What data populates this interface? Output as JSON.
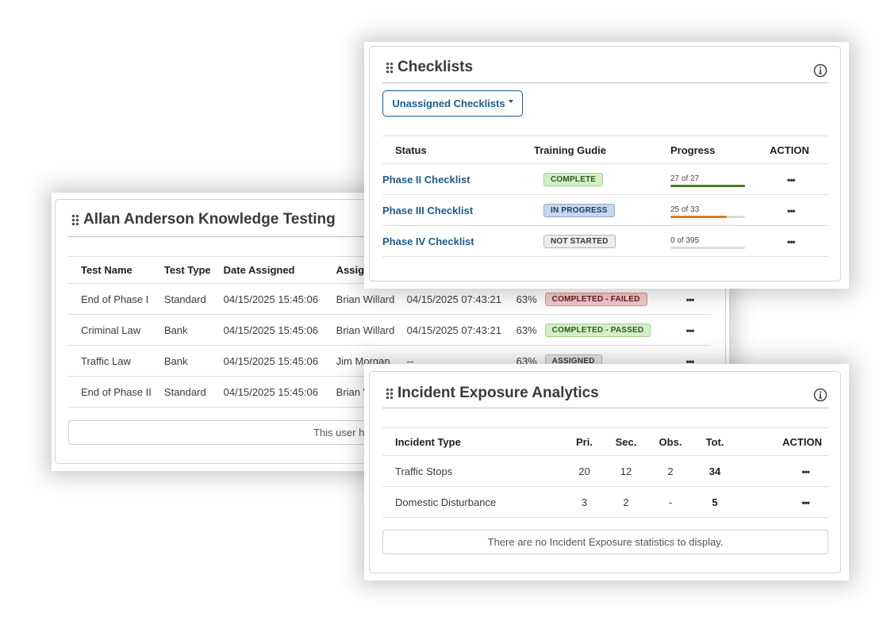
{
  "knowledge_testing": {
    "title": "Allan Anderson Knowledge Testing",
    "columns": [
      "Test Name",
      "Test Type",
      "Date Assigned",
      "Assigne",
      "",
      "",
      "",
      ""
    ],
    "rows": [
      {
        "name": "End of Phase I",
        "type": "Standard",
        "date_assigned": "04/15/2025 15:45:06",
        "assigned_by": "Brian Willard",
        "date_completed": "04/15/2025 07:43:21",
        "score": "63%",
        "status": "COMPLETED - FAILED",
        "action": "•••"
      },
      {
        "name": "Criminal Law",
        "type": "Bank",
        "date_assigned": "04/15/2025 15:45:06",
        "assigned_by": "Brian Willard",
        "date_completed": "04/15/2025 07:43:21",
        "score": "63%",
        "status": "COMPLETED - PASSED",
        "action": "•••"
      },
      {
        "name": "Traffic Law",
        "type": "Bank",
        "date_assigned": "04/15/2025 15:45:06",
        "assigned_by": "Jim Morgan",
        "date_completed": "--",
        "score": "63%",
        "status": "ASSIGNED",
        "action": "•••"
      },
      {
        "name": "End of Phase II",
        "type": "Standard",
        "date_assigned": "04/15/2025 15:45:06",
        "assigned_by": "Brian W",
        "date_completed": "",
        "score": "",
        "status": "",
        "action": ""
      }
    ],
    "empty_message": "This user h"
  },
  "checklists": {
    "title": "Checklists",
    "dropdown_label": "Unassigned Checklists",
    "columns": [
      "Status",
      "Training Gudie",
      "Progress",
      "ACTION"
    ],
    "rows": [
      {
        "name": "Phase II Checklist",
        "status": "COMPLETE",
        "progress_label": "27 of 27",
        "progress": 1.0,
        "color": "#4a7a1e",
        "action": "•••"
      },
      {
        "name": "Phase III Checklist",
        "status": "IN PROGRESS",
        "progress_label": "25 of 33",
        "progress": 0.7576,
        "color": "#e07a1f",
        "action": "•••"
      },
      {
        "name": "Phase IV Checklist",
        "status": "NOT STARTED",
        "progress_label": "0 of 395",
        "progress": 0.0,
        "color": "#dcdcdc",
        "action": "•••"
      }
    ]
  },
  "incident_exposure": {
    "title": "Incident Exposure Analytics",
    "columns": [
      "Incident Type",
      "Pri.",
      "Sec.",
      "Obs.",
      "Tot.",
      "ACTION"
    ],
    "rows": [
      {
        "type": "Traffic Stops",
        "pri": "20",
        "sec": "12",
        "obs": "2",
        "tot": "34",
        "action": "•••"
      },
      {
        "type": "Domestic Disturbance",
        "pri": "3",
        "sec": "2",
        "obs": "-",
        "tot": "5",
        "action": "•••"
      }
    ],
    "empty_message": "There are no Incident Exposure statistics to display."
  }
}
